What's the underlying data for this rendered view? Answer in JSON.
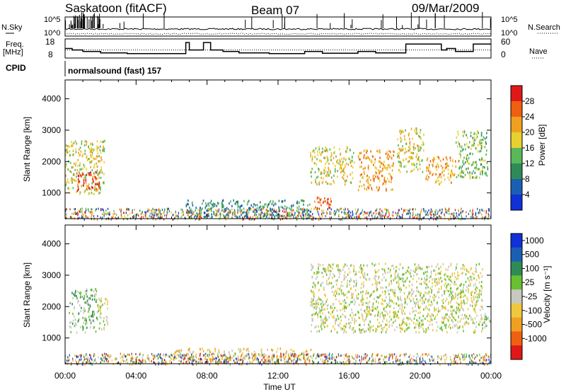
{
  "header": {
    "station": "Saskatoon (fitACF)",
    "beam": "Beam 07",
    "date": "09/Mar/2009"
  },
  "left_labels": {
    "nsky": "N.Sky",
    "freq_line1": "Freq.",
    "freq_line2": "[MHz]",
    "cpid": "CPID"
  },
  "right_labels": {
    "nsearch": "N.Search",
    "nave": "Nave"
  },
  "cpid_text": "normalsound (fast) 157",
  "colors": {
    "power": [
      "#1030d8",
      "#1a5fb4",
      "#2e8b57",
      "#5ab85a",
      "#e8d030",
      "#f0a020",
      "#ee6010",
      "#e01818"
    ],
    "velocity": [
      "#e01818",
      "#ee6010",
      "#f0a020",
      "#f0c840",
      "#c8c8c0",
      "#68c030",
      "#2e8b57",
      "#1a5fb4",
      "#1030d8"
    ]
  },
  "chart_data": [
    {
      "type": "line",
      "id": "noise",
      "left_axis_ticks": [
        "10^5",
        "10^0"
      ],
      "right_axis_ticks": [
        "10^5",
        "10^0"
      ],
      "x_range": [
        0,
        24
      ]
    },
    {
      "type": "line",
      "id": "frequency",
      "left_axis_ticks": [
        "18",
        "8"
      ],
      "right_axis_ticks": [
        "60",
        "0"
      ],
      "ylim": [
        8,
        18
      ],
      "series": [
        {
          "kind": "solid",
          "x": [
            0,
            0.4,
            0.4,
            1.0,
            1.0,
            2.0,
            2.0,
            3.5,
            3.5,
            6.8,
            6.8,
            7.0,
            7.0,
            7.8,
            7.8,
            8.2,
            8.2,
            8.9,
            8.9,
            9.8,
            9.8,
            11.5,
            11.5,
            13.5,
            13.5,
            14.5,
            14.5,
            16.5,
            16.5,
            17.5,
            17.5,
            19.2,
            19.2,
            21.2,
            21.2,
            21.5,
            21.5,
            22.0,
            22.0,
            23.0,
            23.0,
            24
          ],
          "y": [
            13,
            13,
            12,
            12,
            11,
            11,
            10,
            10,
            9.5,
            9.5,
            17,
            17,
            12,
            12,
            17,
            17,
            12,
            12,
            11,
            11,
            10,
            10,
            9.5,
            9.5,
            11,
            11,
            9.8,
            9.8,
            11,
            11,
            10,
            10,
            16,
            16,
            12,
            12,
            13,
            13,
            11,
            11,
            16,
            16
          ]
        },
        {
          "kind": "dotted",
          "y_const": 12
        }
      ]
    },
    {
      "type": "heatmap",
      "id": "power",
      "ylabel": "Slant Range [km]",
      "colorbar_label": "Power [dB]",
      "yticks": [
        1000,
        2000,
        3000,
        4000
      ],
      "ylim": [
        180,
        4600
      ],
      "colorbar_ticks": [
        "28",
        "24",
        "20",
        "16",
        "12",
        "8",
        "4"
      ],
      "x_range": [
        0,
        24
      ],
      "regions": [
        {
          "x0": 0.0,
          "x1": 2.2,
          "y0": 1000,
          "y1": 2700,
          "level": 4
        },
        {
          "x0": 0.6,
          "x1": 2.0,
          "y0": 1100,
          "y1": 1700,
          "level": 7
        },
        {
          "x0": 6.8,
          "x1": 13.8,
          "y0": 250,
          "y1": 800,
          "level": 2
        },
        {
          "x0": 13.8,
          "x1": 16.3,
          "y0": 1300,
          "y1": 2500,
          "level": 4
        },
        {
          "x0": 16.5,
          "x1": 18.5,
          "y0": 1100,
          "y1": 2400,
          "level": 5
        },
        {
          "x0": 18.7,
          "x1": 20.2,
          "y0": 1700,
          "y1": 3100,
          "level": 4
        },
        {
          "x0": 20.3,
          "x1": 22.0,
          "y0": 1300,
          "y1": 2200,
          "level": 5
        },
        {
          "x0": 22.0,
          "x1": 23.8,
          "y0": 1500,
          "y1": 3000,
          "level": 3
        },
        {
          "x0": 14.0,
          "x1": 15.0,
          "y0": 500,
          "y1": 900,
          "level": 6
        }
      ]
    },
    {
      "type": "heatmap",
      "id": "velocity",
      "ylabel": "Slant Range [km]",
      "colorbar_label": "Velocity [m s⁻¹]",
      "yticks": [
        1000,
        2000,
        3000,
        4000
      ],
      "ylim": [
        180,
        4600
      ],
      "colorbar_ticks": [
        "1000",
        "500",
        "100",
        "25",
        "-25",
        "-100",
        "-500",
        "-1000"
      ],
      "x_range": [
        0,
        24
      ],
      "xticks": [
        "00:00",
        "04:00",
        "08:00",
        "12:00",
        "16:00",
        "20:00",
        "00:00"
      ],
      "xlabel": "Time UT",
      "regions": [
        {
          "x0": 0.2,
          "x1": 1.8,
          "y0": 1200,
          "y1": 2600,
          "level": 5
        },
        {
          "x0": 1.8,
          "x1": 2.4,
          "y0": 1300,
          "y1": 2300,
          "level": 4
        },
        {
          "x0": 6.0,
          "x1": 14.0,
          "y0": 250,
          "y1": 700,
          "level": 3
        },
        {
          "x0": 13.8,
          "x1": 23.5,
          "y0": 1200,
          "y1": 3400,
          "level": 4
        },
        {
          "x0": 23.4,
          "x1": 24.0,
          "y0": 1300,
          "y1": 1800,
          "level": 5
        }
      ]
    }
  ]
}
